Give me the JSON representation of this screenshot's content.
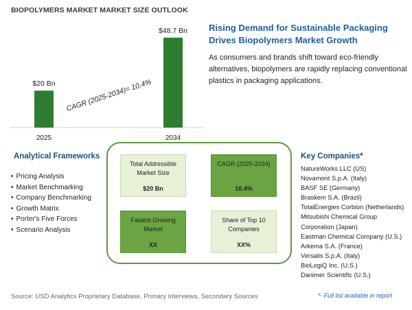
{
  "page_title": "BIOPOLYMERS MARKET MARKET SIZE OUTLOOK",
  "chart_data": {
    "type": "bar",
    "categories": [
      "2025",
      "2034"
    ],
    "values": [
      20,
      48.7
    ],
    "data_labels": [
      "$20 Bn",
      "$48.7 Bn"
    ],
    "ylim": [
      0,
      52
    ],
    "annotation": "CAGR (2025-2034)=   10.4%",
    "bar_color": "#2e7d32",
    "grid": false,
    "legend": "none"
  },
  "insight": {
    "heading": "Rising Demand for Sustainable Packaging Drives Biopolymers Market Growth",
    "text": "As consumers and brands shift toward eco-friendly alternatives, biopolymers are rapidly replacing conventional plastics in packaging applications."
  },
  "frameworks": {
    "title": "Analytical Frameworks",
    "items": [
      "Pricing Analysis",
      "Market Benchmarking",
      "Company Benchmarking",
      "Growth Matrix",
      "Porter's Five Forces",
      "Scenario Analysis"
    ]
  },
  "metrics": [
    {
      "label": "Total Addressible Market Size",
      "value": "$20 Bn",
      "style": "light"
    },
    {
      "label": "CAGR (2025-2034)",
      "value": "10.4%",
      "style": "dark"
    },
    {
      "label": "Fastest Growing Market",
      "value": "XX",
      "style": "dark"
    },
    {
      "label": "Share of Top 10 Companies",
      "value": "XX%",
      "style": "light"
    }
  ],
  "companies": {
    "title": "Key Companies*",
    "items": [
      "NatureWorks LLC (US)",
      "Novamont S.p.A. (Italy)",
      "BASF SE (Germany)",
      "Braskem S.A. (Brazil)",
      "TotalEnergies Corbion (Netherlands)",
      "Mitsubishi Chemical Group Corporation (Japan)",
      "Eastman Chemical Company (U.S.)",
      "Arkema S.A. (France)",
      "Versalis S.p.A. (Italy)",
      "BioLogiQ Inc. (U.S.)",
      "Danimer Scientific (U.S.)"
    ]
  },
  "footer": {
    "source": "Source: USD Analytics Proprietary Database, Primary Interviews, Secondary Sources",
    "full_list": "*- Full list available in report"
  },
  "colors": {
    "accent_blue": "#1f5fa8",
    "green_dark": "#6aa443",
    "green_light": "#e6f1d8",
    "border_green": "#5a9a3a"
  }
}
